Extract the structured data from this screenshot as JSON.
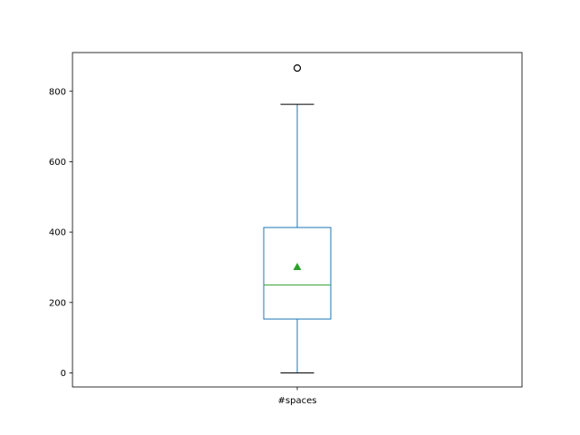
{
  "chart_data": {
    "type": "box",
    "title": "",
    "xlabel": "",
    "ylabel": "",
    "categories": [
      "#spaces"
    ],
    "ylim": [
      -40,
      910
    ],
    "y_ticks": [
      0,
      200,
      400,
      600,
      800
    ],
    "y_tick_labels": [
      "0",
      "200",
      "400",
      "600",
      "800"
    ],
    "grid": false,
    "series": [
      {
        "category": "#spaces",
        "whisker_low": 0,
        "q1": 153,
        "median": 250,
        "q3": 413,
        "whisker_high": 763,
        "mean": 301,
        "outliers": [
          866
        ]
      }
    ],
    "colors": {
      "box": "#1f77b4",
      "median": "#2ca02c",
      "mean_marker": "#2ca02c",
      "caps": "#000000",
      "outlier": "#000000",
      "axes": "#000000"
    }
  }
}
